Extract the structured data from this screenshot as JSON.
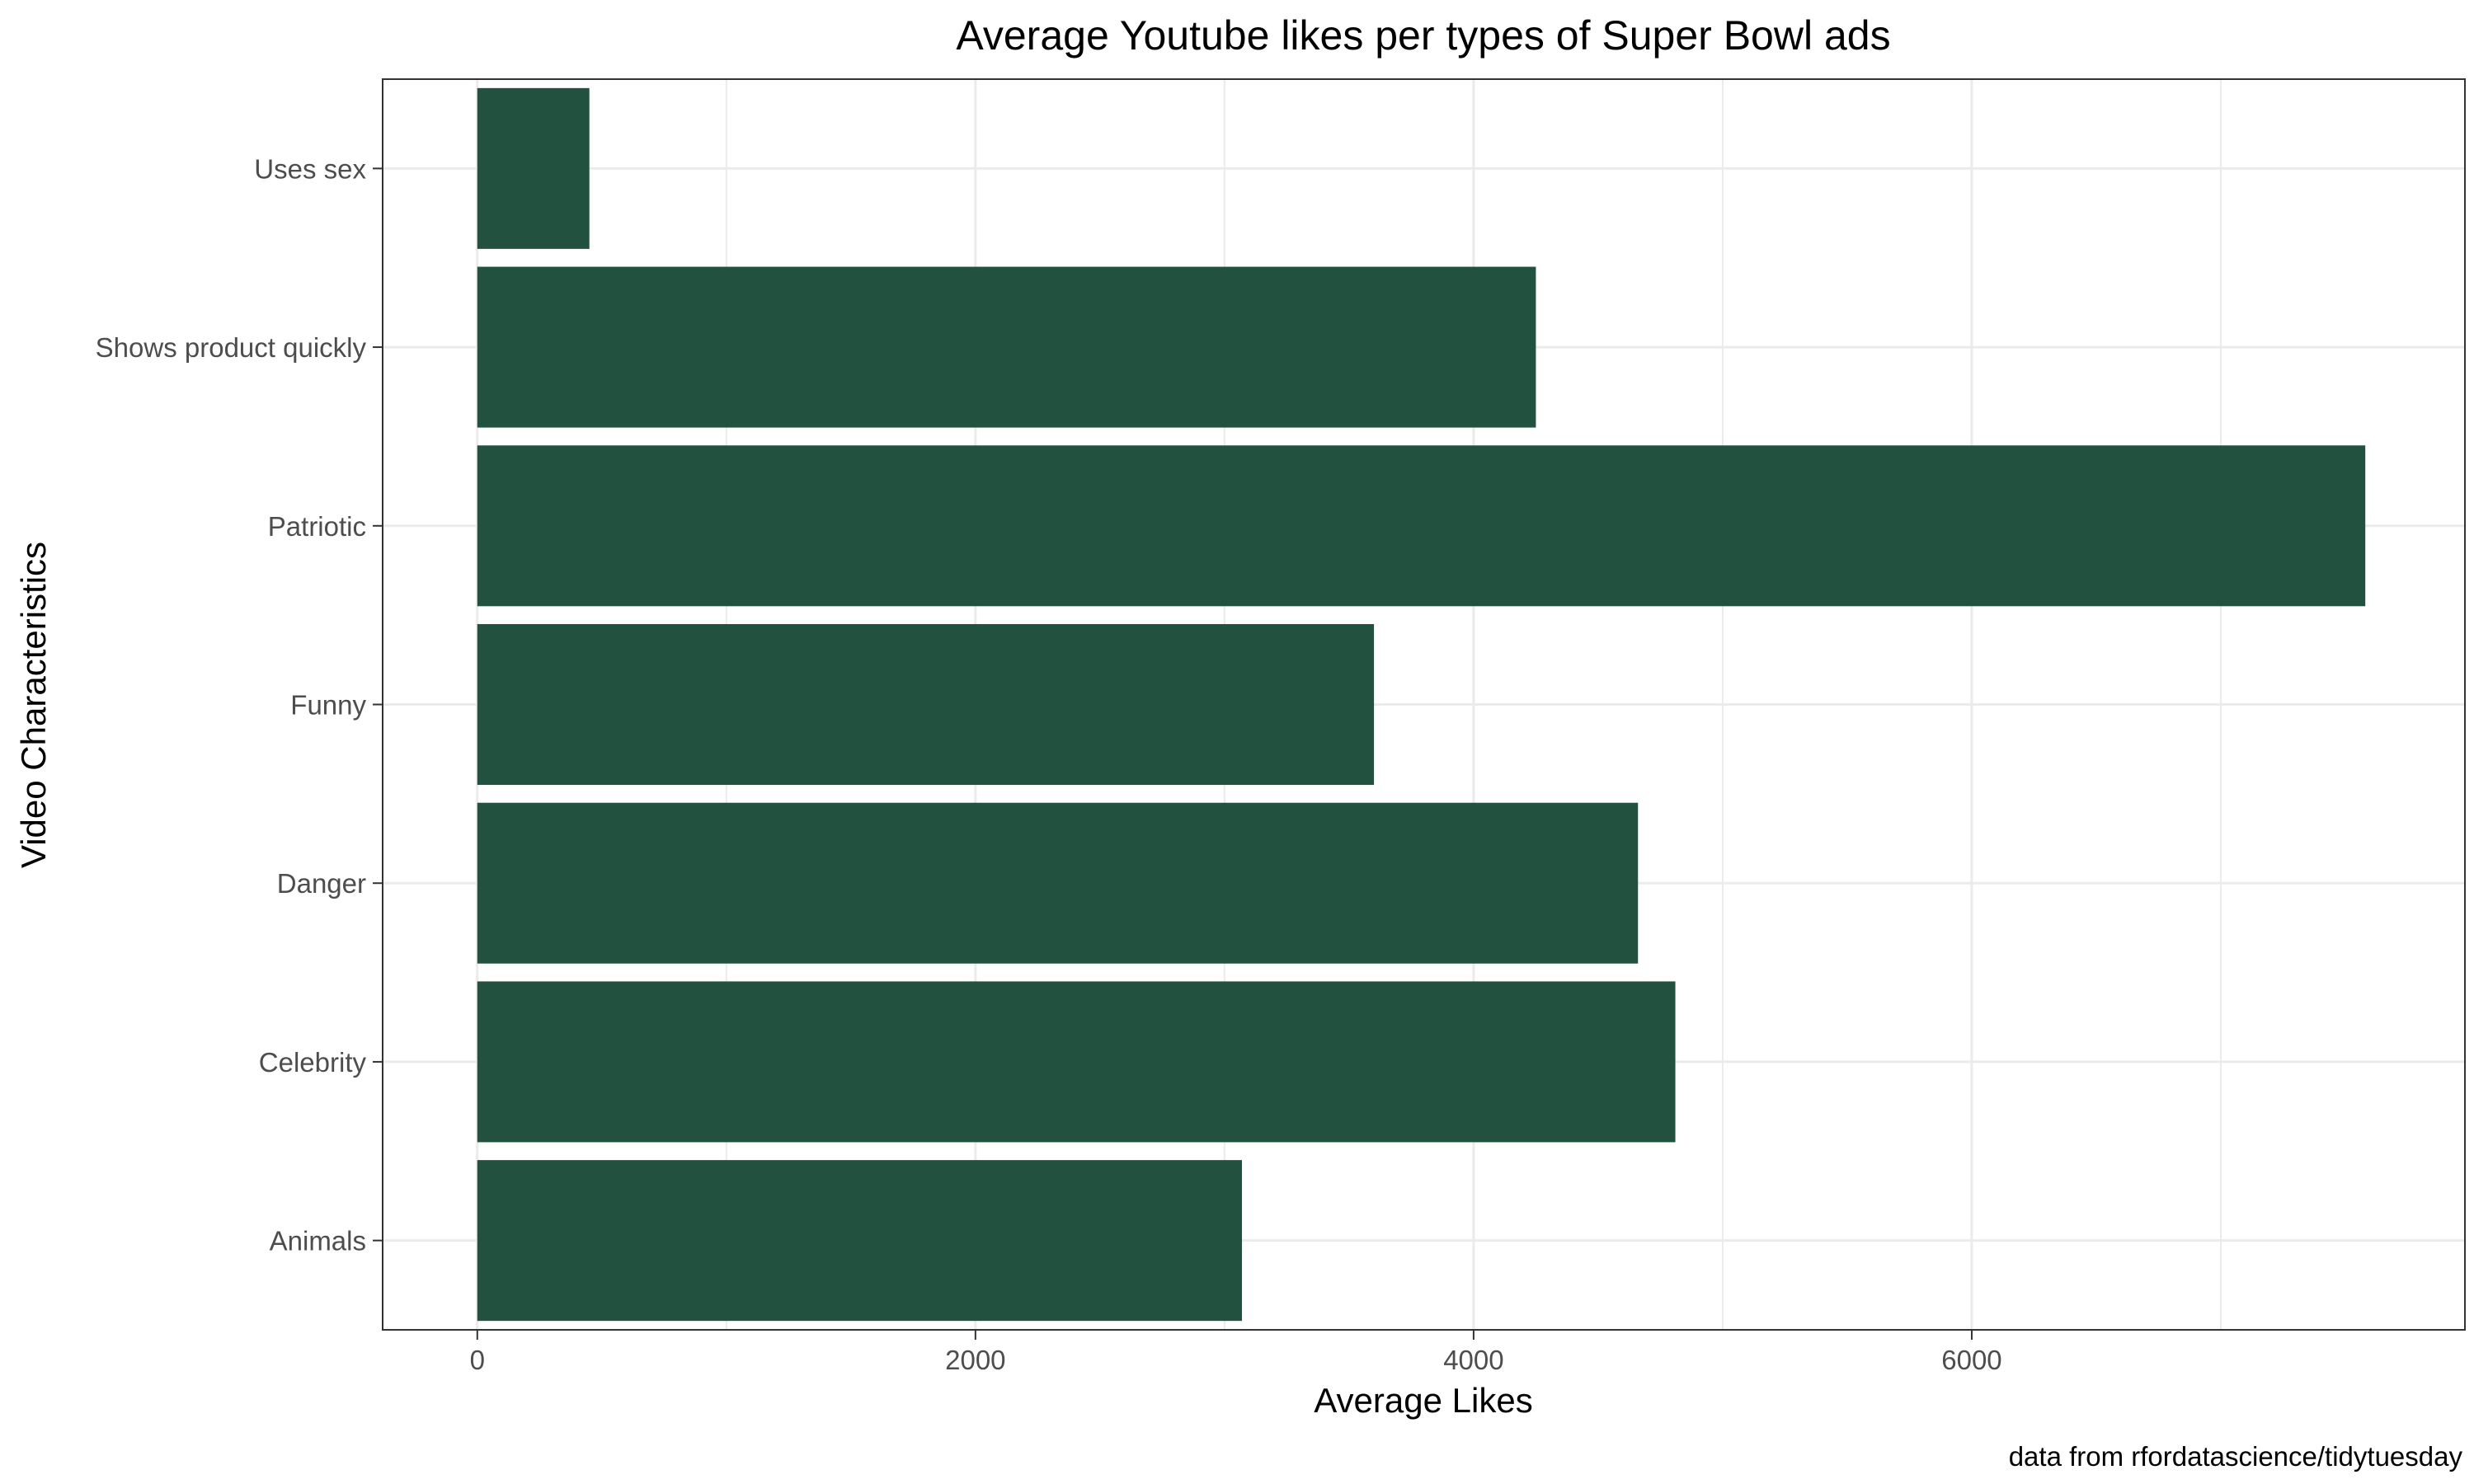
{
  "chart_data": {
    "type": "bar",
    "orientation": "horizontal",
    "title": "Average Youtube likes per types of Super Bowl ads",
    "xlabel": "Average Likes",
    "ylabel": "Video Characteristics",
    "caption": "data from rfordatascience/tidytuesday",
    "categories": [
      "Uses sex",
      "Shows product quickly",
      "Patriotic",
      "Funny",
      "Danger",
      "Celebrity",
      "Animals"
    ],
    "values": [
      450,
      4250,
      7580,
      3600,
      4660,
      4810,
      3070
    ],
    "xlim": [
      -380,
      7980
    ],
    "x_ticks": [
      0,
      2000,
      4000,
      6000
    ],
    "x_tick_labels": [
      "0",
      "2000",
      "4000",
      "6000"
    ],
    "grid": true,
    "bar_color": "#22523f",
    "grid_color": "#ebebeb",
    "panel_border_color": "#333333"
  }
}
